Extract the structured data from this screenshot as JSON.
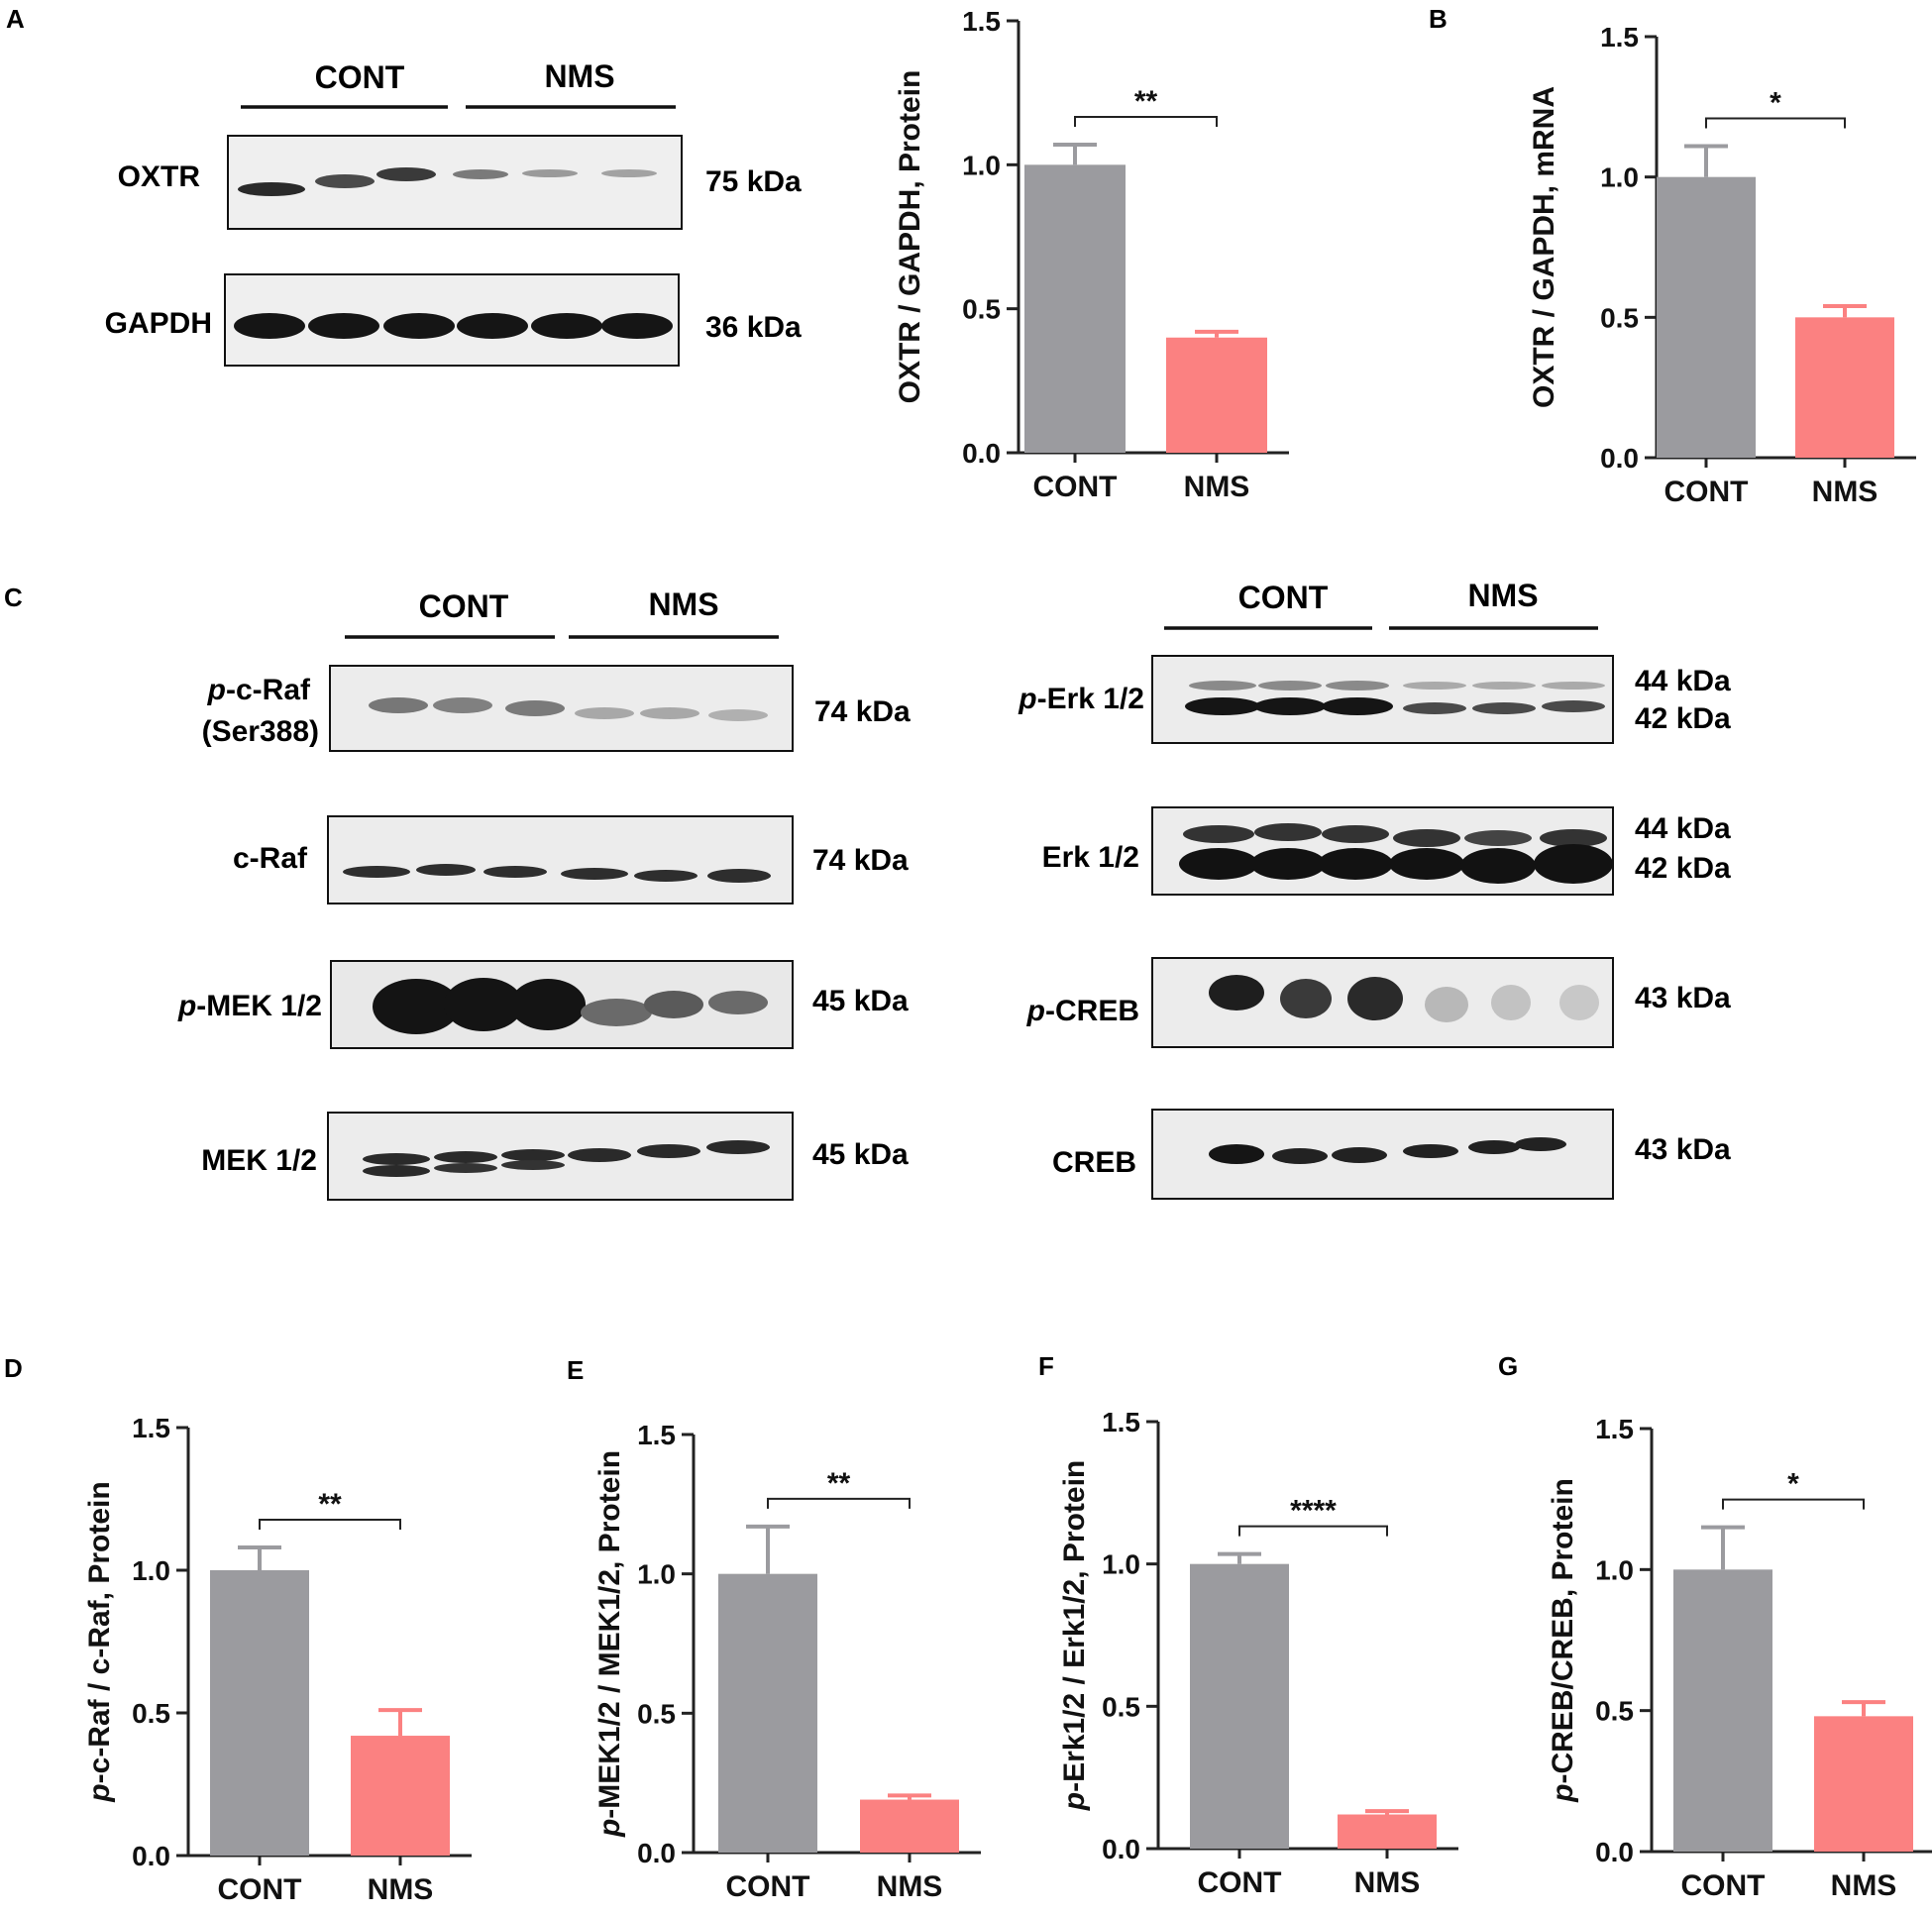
{
  "colors": {
    "cont": "#9b9b9f",
    "nms": "#fb8181",
    "axis": "#222222",
    "text": "#111111",
    "blot_bg": "#f1f1f1",
    "band_strong": "#1a1a1a",
    "band_weak": "#8a8a8a"
  },
  "panel_labels": [
    "A",
    "B",
    "C",
    "D",
    "E",
    "F",
    "G"
  ],
  "blots": {
    "A": {
      "groups": [
        "CONT",
        "NMS"
      ],
      "rows": [
        {
          "name": "OXTR",
          "kda": "75 kDa"
        },
        {
          "name": "GAPDH",
          "kda": "36 kDa"
        }
      ]
    },
    "C_left": {
      "groups": [
        "CONT",
        "NMS"
      ],
      "rows": [
        {
          "prefix": "p",
          "name": "-c-Raf",
          "name2": "(Ser388)",
          "kda": "74 kDa"
        },
        {
          "prefix": "",
          "name": "c-Raf",
          "kda": "74 kDa"
        },
        {
          "prefix": "p",
          "name": "-MEK 1/2",
          "kda": "45 kDa"
        },
        {
          "prefix": "",
          "name": "MEK 1/2",
          "kda": "45 kDa"
        }
      ]
    },
    "C_right": {
      "groups": [
        "CONT",
        "NMS"
      ],
      "rows": [
        {
          "prefix": "p",
          "name": "-Erk 1/2",
          "kda": "44 kDa",
          "kda2": "42 kDa"
        },
        {
          "prefix": "",
          "name": "Erk 1/2",
          "kda": "44 kDa",
          "kda2": "42 kDa"
        },
        {
          "prefix": "p",
          "name": "-CREB",
          "kda": "43 kDa"
        },
        {
          "prefix": "",
          "name": "CREB",
          "kda": "43 kDa"
        }
      ]
    }
  },
  "chart_data": [
    {
      "panel": "A",
      "type": "bar",
      "categories": [
        "CONT",
        "NMS"
      ],
      "values": [
        1.0,
        0.4
      ],
      "errors": [
        0.07,
        0.02
      ],
      "ylabel": "OXTR / GAPDH, Protein",
      "ylabel_prefix": "",
      "ylim": [
        0,
        1.5
      ],
      "yticks": [
        "0.0",
        "0.5",
        "1.0",
        "1.5"
      ],
      "significance": "**"
    },
    {
      "panel": "B",
      "type": "bar",
      "categories": [
        "CONT",
        "NMS"
      ],
      "values": [
        1.0,
        0.5
      ],
      "errors": [
        0.11,
        0.04
      ],
      "ylabel": "OXTR / GAPDH, mRNA",
      "ylabel_prefix": "",
      "ylim": [
        0,
        1.5
      ],
      "yticks": [
        "0.0",
        "0.5",
        "1.0",
        "1.5"
      ],
      "significance": "*"
    },
    {
      "panel": "D",
      "type": "bar",
      "categories": [
        "CONT",
        "NMS"
      ],
      "values": [
        1.0,
        0.42
      ],
      "errors": [
        0.08,
        0.09
      ],
      "ylabel": "-c-Raf / c-Raf, Protein",
      "ylabel_prefix": "p",
      "ylim": [
        0,
        1.5
      ],
      "yticks": [
        "0.0",
        "0.5",
        "1.0",
        "1.5"
      ],
      "significance": "**"
    },
    {
      "panel": "E",
      "type": "bar",
      "categories": [
        "CONT",
        "NMS"
      ],
      "values": [
        1.0,
        0.19
      ],
      "errors": [
        0.17,
        0.015
      ],
      "ylabel": "-MEK1/2 / MEK1/2, Protein",
      "ylabel_prefix": "p",
      "ylim": [
        0,
        1.5
      ],
      "yticks": [
        "0.0",
        "0.5",
        "1.0",
        "1.5"
      ],
      "significance": "**"
    },
    {
      "panel": "F",
      "type": "bar",
      "categories": [
        "CONT",
        "NMS"
      ],
      "values": [
        1.0,
        0.12
      ],
      "errors": [
        0.035,
        0.012
      ],
      "ylabel": "-Erk1/2 / Erk1/2, Protein",
      "ylabel_prefix": "p",
      "ylim": [
        0,
        1.5
      ],
      "yticks": [
        "0.0",
        "0.5",
        "1.0",
        "1.5"
      ],
      "significance": "****"
    },
    {
      "panel": "G",
      "type": "bar",
      "categories": [
        "CONT",
        "NMS"
      ],
      "values": [
        1.0,
        0.48
      ],
      "errors": [
        0.15,
        0.05
      ],
      "ylabel": "-CREB/CREB, Protein",
      "ylabel_prefix": "p",
      "ylim": [
        0,
        1.5
      ],
      "yticks": [
        "0.0",
        "0.5",
        "1.0",
        "1.5"
      ],
      "significance": "*"
    }
  ]
}
